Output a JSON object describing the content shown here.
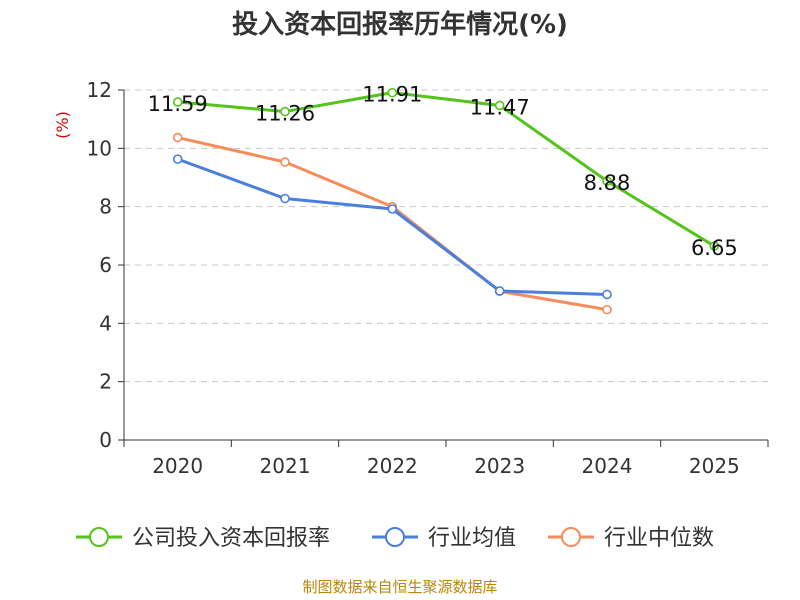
{
  "chart_data": {
    "type": "line",
    "title": "投入资本回报率历年情况(%)",
    "ylabel": "(%)",
    "xlabel": "",
    "categories": [
      "2020",
      "2021",
      "2022",
      "2023",
      "2024",
      "2025"
    ],
    "ylim": [
      0,
      12
    ],
    "yticks": [
      0,
      2,
      4,
      6,
      8,
      10,
      12
    ],
    "grid": true,
    "legend_position": "bottom",
    "series": [
      {
        "name": "公司投入资本回报率",
        "color": "#52c41a",
        "values": [
          11.59,
          11.26,
          11.91,
          11.47,
          8.88,
          6.65
        ],
        "labels": [
          "11.59",
          "11.26",
          "11.91",
          "11.47",
          "8.88",
          "6.65"
        ]
      },
      {
        "name": "行业均值",
        "color": "#4a7fdc",
        "values": [
          9.63,
          8.28,
          7.92,
          5.11,
          4.99,
          null
        ]
      },
      {
        "name": "行业中位数",
        "color": "#f58c5a",
        "values": [
          10.37,
          9.53,
          8.0,
          5.1,
          4.47,
          null
        ]
      }
    ]
  },
  "footer": "制图数据来自恒生聚源数据库"
}
